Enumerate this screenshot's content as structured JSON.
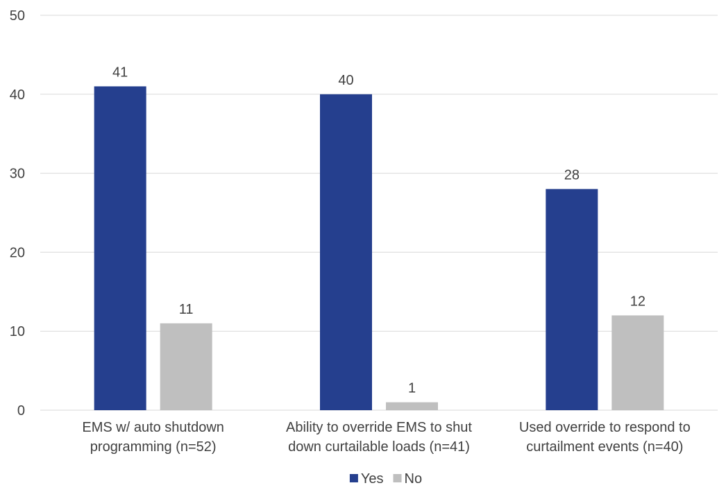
{
  "chart_data": {
    "type": "bar",
    "categories": [
      [
        "EMS w/ auto shutdown",
        "programming (n=52)"
      ],
      [
        "Ability to override EMS to shut",
        "down curtailable loads (n=41)"
      ],
      [
        "Used override to respond to",
        "curtailment events (n=40)"
      ]
    ],
    "series": [
      {
        "name": "Yes",
        "color": "#253F8E",
        "values": [
          41,
          40,
          28
        ]
      },
      {
        "name": "No",
        "color": "#BFBFBF",
        "values": [
          11,
          1,
          12
        ]
      }
    ],
    "ylim": [
      0,
      50
    ],
    "yticks": [
      0,
      10,
      20,
      30,
      40,
      50
    ],
    "grid": true,
    "legend_position": "bottom-center",
    "data_labels": true
  }
}
